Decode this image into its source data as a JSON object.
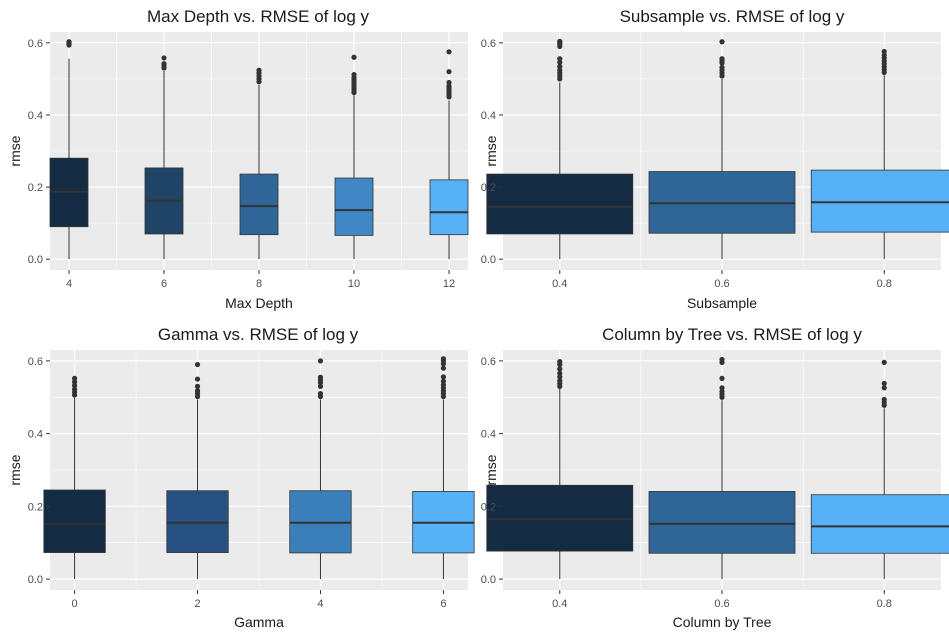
{
  "chart_data": [
    {
      "type": "box",
      "title": "Max Depth vs. RMSE of log y",
      "xlabel": "Max Depth",
      "ylabel": "rmse",
      "x_scale": "continuous",
      "xlim": [
        3.6,
        12.4
      ],
      "x_ticks": [
        4,
        6,
        8,
        10,
        12
      ],
      "x_tick_labels": [
        "4",
        "6",
        "8",
        "10",
        "12"
      ],
      "ylim": [
        -0.03,
        0.63
      ],
      "y_ticks": [
        0.0,
        0.2,
        0.4,
        0.6
      ],
      "y_tick_labels": [
        "0.0",
        "0.2",
        "0.4",
        "0.6"
      ],
      "box_width": 0.8,
      "colors": [
        "#132B43",
        "#1f4466",
        "#2f6698",
        "#3f88c5",
        "#56B1F7"
      ],
      "boxes": [
        {
          "x": 4,
          "min": 0.0,
          "q1": 0.09,
          "median": 0.187,
          "q3": 0.28,
          "max": 0.556,
          "outliers": [
            0.594,
            0.597,
            0.6,
            0.603
          ]
        },
        {
          "x": 6,
          "min": 0.0,
          "q1": 0.07,
          "median": 0.162,
          "q3": 0.253,
          "max": 0.522,
          "outliers": [
            0.53,
            0.536,
            0.542,
            0.558
          ]
        },
        {
          "x": 8,
          "min": 0.0,
          "q1": 0.068,
          "median": 0.147,
          "q3": 0.236,
          "max": 0.483,
          "outliers": [
            0.492,
            0.5,
            0.508,
            0.516,
            0.524
          ]
        },
        {
          "x": 10,
          "min": 0.0,
          "q1": 0.066,
          "median": 0.136,
          "q3": 0.225,
          "max": 0.455,
          "outliers": [
            0.462,
            0.468,
            0.474,
            0.48,
            0.486,
            0.492,
            0.498,
            0.504,
            0.512,
            0.56
          ]
        },
        {
          "x": 12,
          "min": 0.0,
          "q1": 0.068,
          "median": 0.13,
          "q3": 0.22,
          "max": 0.44,
          "outliers": [
            0.45,
            0.456,
            0.462,
            0.468,
            0.474,
            0.48,
            0.49,
            0.52,
            0.575
          ]
        }
      ]
    },
    {
      "type": "box",
      "title": "Subsample vs. RMSE of log y",
      "xlabel": "Subsample",
      "ylabel": "rmse",
      "x_scale": "continuous",
      "xlim": [
        0.33,
        0.87
      ],
      "x_ticks": [
        0.4,
        0.6,
        0.8
      ],
      "x_tick_labels": [
        "0.4",
        "0.6",
        "0.8"
      ],
      "ylim": [
        -0.03,
        0.63
      ],
      "y_ticks": [
        0.0,
        0.2,
        0.4,
        0.6
      ],
      "y_tick_labels": [
        "0.0",
        "0.2",
        "0.4",
        "0.6"
      ],
      "box_width": 0.18,
      "colors": [
        "#132B43",
        "#2f6698",
        "#56B1F7"
      ],
      "boxes": [
        {
          "x": 0.4,
          "min": 0.0,
          "q1": 0.07,
          "median": 0.145,
          "q3": 0.236,
          "max": 0.49,
          "outliers": [
            0.5,
            0.508,
            0.516,
            0.524,
            0.534,
            0.546,
            0.556,
            0.59,
            0.596,
            0.6,
            0.604
          ]
        },
        {
          "x": 0.6,
          "min": 0.0,
          "q1": 0.072,
          "median": 0.155,
          "q3": 0.243,
          "max": 0.5,
          "outliers": [
            0.508,
            0.516,
            0.524,
            0.532,
            0.544,
            0.55,
            0.556,
            0.603
          ]
        },
        {
          "x": 0.8,
          "min": 0.0,
          "q1": 0.075,
          "median": 0.158,
          "q3": 0.247,
          "max": 0.51,
          "outliers": [
            0.518,
            0.526,
            0.534,
            0.542,
            0.55,
            0.558,
            0.566,
            0.576
          ]
        }
      ]
    },
    {
      "type": "box",
      "title": "Gamma vs. RMSE of log y",
      "xlabel": "Gamma",
      "ylabel": "rmse",
      "x_scale": "continuous",
      "xlim": [
        -0.4,
        6.4
      ],
      "x_ticks": [
        0,
        2,
        4,
        6
      ],
      "x_tick_labels": [
        "0",
        "2",
        "4",
        "6"
      ],
      "ylim": [
        -0.03,
        0.63
      ],
      "y_ticks": [
        0.0,
        0.2,
        0.4,
        0.6
      ],
      "y_tick_labels": [
        "0.0",
        "0.2",
        "0.4",
        "0.6"
      ],
      "box_width": 1.0,
      "colors": [
        "#132B43",
        "#265180",
        "#3a7fb9",
        "#56B1F7"
      ],
      "boxes": [
        {
          "x": 0,
          "min": 0.0,
          "q1": 0.073,
          "median": 0.152,
          "q3": 0.245,
          "max": 0.498,
          "outliers": [
            0.506,
            0.514,
            0.522,
            0.532,
            0.542,
            0.552
          ]
        },
        {
          "x": 2,
          "min": 0.0,
          "q1": 0.073,
          "median": 0.155,
          "q3": 0.243,
          "max": 0.494,
          "outliers": [
            0.502,
            0.51,
            0.518,
            0.53,
            0.55,
            0.59
          ]
        },
        {
          "x": 4,
          "min": 0.0,
          "q1": 0.072,
          "median": 0.155,
          "q3": 0.243,
          "max": 0.494,
          "outliers": [
            0.502,
            0.51,
            0.53,
            0.54,
            0.548,
            0.555,
            0.6
          ]
        },
        {
          "x": 6,
          "min": 0.0,
          "q1": 0.072,
          "median": 0.155,
          "q3": 0.241,
          "max": 0.494,
          "outliers": [
            0.502,
            0.51,
            0.518,
            0.526,
            0.534,
            0.544,
            0.556,
            0.58,
            0.592,
            0.6,
            0.606
          ]
        }
      ]
    },
    {
      "type": "box",
      "title": "Column by Tree vs. RMSE of log y",
      "xlabel": "Column by Tree",
      "ylabel": "rmse",
      "x_scale": "continuous",
      "xlim": [
        0.33,
        0.87
      ],
      "x_ticks": [
        0.4,
        0.6,
        0.8
      ],
      "x_tick_labels": [
        "0.4",
        "0.6",
        "0.8"
      ],
      "ylim": [
        -0.03,
        0.63
      ],
      "y_ticks": [
        0.0,
        0.2,
        0.4,
        0.6
      ],
      "y_tick_labels": [
        "0.0",
        "0.2",
        "0.4",
        "0.6"
      ],
      "box_width": 0.18,
      "colors": [
        "#132B43",
        "#2f6698",
        "#56B1F7"
      ],
      "boxes": [
        {
          "x": 0.4,
          "min": 0.0,
          "q1": 0.077,
          "median": 0.165,
          "q3": 0.258,
          "max": 0.526,
          "outliers": [
            0.53,
            0.538,
            0.546,
            0.556,
            0.566,
            0.578,
            0.59,
            0.598
          ]
        },
        {
          "x": 0.6,
          "min": 0.0,
          "q1": 0.071,
          "median": 0.152,
          "q3": 0.241,
          "max": 0.492,
          "outliers": [
            0.5,
            0.508,
            0.516,
            0.526,
            0.552,
            0.596,
            0.604
          ]
        },
        {
          "x": 0.8,
          "min": 0.0,
          "q1": 0.071,
          "median": 0.145,
          "q3": 0.232,
          "max": 0.47,
          "outliers": [
            0.478,
            0.486,
            0.494,
            0.526,
            0.538,
            0.596
          ]
        }
      ]
    }
  ]
}
